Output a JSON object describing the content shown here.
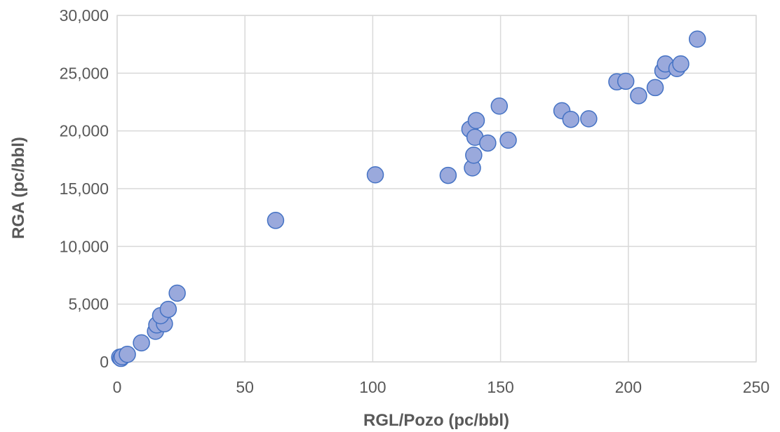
{
  "chart_data": {
    "type": "scatter",
    "title": "",
    "xlabel": "RGL/Pozo (pc/bbl)",
    "ylabel": "RGA (pc/bbl)",
    "xlim": [
      0,
      250
    ],
    "ylim": [
      0,
      30000
    ],
    "x_ticks": [
      0,
      50,
      100,
      150,
      200,
      250
    ],
    "y_ticks": [
      0,
      5000,
      10000,
      15000,
      20000,
      25000,
      30000
    ],
    "x_tick_labels": [
      "0",
      "50",
      "100",
      "150",
      "200",
      "250"
    ],
    "y_tick_labels": [
      "0",
      "5,000",
      "10,000",
      "15,000",
      "20,000",
      "25,000",
      "30,000"
    ],
    "grid": true,
    "legend": "none",
    "colors": {
      "marker_fill": "#9aa9dc",
      "marker_edge": "#4472c4",
      "grid": "#d9d9d9",
      "text": "#595959"
    },
    "series": [
      {
        "points": [
          {
            "x": 1,
            "y": 400
          },
          {
            "x": 1.5,
            "y": 300
          },
          {
            "x": 2,
            "y": 450
          },
          {
            "x": 4,
            "y": 650
          },
          {
            "x": 9.5,
            "y": 1650
          },
          {
            "x": 15,
            "y": 2650
          },
          {
            "x": 15.5,
            "y": 3200
          },
          {
            "x": 18.5,
            "y": 3300
          },
          {
            "x": 17,
            "y": 4000
          },
          {
            "x": 20,
            "y": 4550
          },
          {
            "x": 23.5,
            "y": 5950
          },
          {
            "x": 62,
            "y": 12250
          },
          {
            "x": 101,
            "y": 16200
          },
          {
            "x": 129.5,
            "y": 16150
          },
          {
            "x": 139,
            "y": 16800
          },
          {
            "x": 139.5,
            "y": 17900
          },
          {
            "x": 138,
            "y": 20150
          },
          {
            "x": 140,
            "y": 19450
          },
          {
            "x": 140.5,
            "y": 20900
          },
          {
            "x": 145,
            "y": 18950
          },
          {
            "x": 149.5,
            "y": 22150
          },
          {
            "x": 153,
            "y": 19200
          },
          {
            "x": 174,
            "y": 21750
          },
          {
            "x": 177.5,
            "y": 21000
          },
          {
            "x": 184.5,
            "y": 21050
          },
          {
            "x": 195.5,
            "y": 24250
          },
          {
            "x": 199,
            "y": 24300
          },
          {
            "x": 204,
            "y": 23050
          },
          {
            "x": 210.5,
            "y": 23750
          },
          {
            "x": 213.5,
            "y": 25200
          },
          {
            "x": 214.5,
            "y": 25800
          },
          {
            "x": 219,
            "y": 25400
          },
          {
            "x": 220.5,
            "y": 25800
          },
          {
            "x": 227,
            "y": 27950
          }
        ]
      }
    ]
  }
}
